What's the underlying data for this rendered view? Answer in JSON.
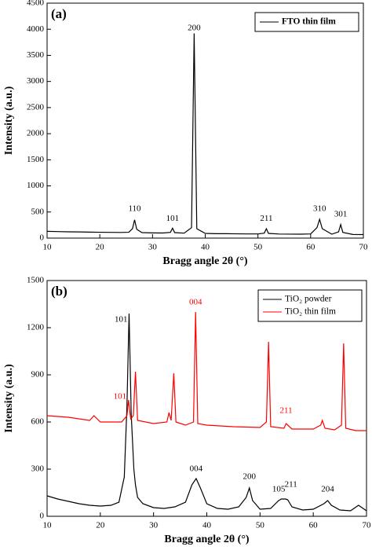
{
  "chart_data": [
    {
      "type": "line",
      "panel_label": "(a)",
      "xlabel": "Bragg angle 2θ (°)",
      "ylabel": "Intensity (a.u.)",
      "xlim": [
        10,
        70
      ],
      "xticks": [
        10,
        20,
        30,
        40,
        50,
        60,
        70
      ],
      "ylim": [
        0,
        4500
      ],
      "yticks": [
        0,
        500,
        1000,
        1500,
        2000,
        2500,
        3000,
        3500,
        4000,
        4500
      ],
      "grid": false,
      "legend": "upper right",
      "series": [
        {
          "name": "FTO thin film",
          "color": "#000000",
          "x": [
            10,
            12,
            14,
            16,
            18,
            20,
            22,
            24,
            25.5,
            26.2,
            26.6,
            27.0,
            28,
            30,
            32,
            33.4,
            33.8,
            34.2,
            36,
            37.4,
            37.9,
            38.4,
            40,
            42,
            44,
            46,
            48,
            50,
            51.2,
            51.6,
            52.0,
            54,
            56,
            58,
            60,
            61.2,
            61.7,
            62.2,
            64,
            65.3,
            65.7,
            66.1,
            68,
            70
          ],
          "values": [
            130,
            125,
            120,
            118,
            115,
            112,
            110,
            108,
            112,
            180,
            350,
            170,
            105,
            100,
            98,
            110,
            190,
            105,
            95,
            200,
            3920,
            180,
            90,
            85,
            85,
            82,
            80,
            80,
            95,
            180,
            90,
            78,
            76,
            75,
            80,
            200,
            360,
            180,
            75,
            120,
            260,
            110,
            70,
            68
          ]
        }
      ],
      "annotations": [
        {
          "text": "200",
          "x": 37.9,
          "y": 4020,
          "color": "#000000"
        },
        {
          "text": "110",
          "x": 26.6,
          "y": 560,
          "color": "#000000"
        },
        {
          "text": "101",
          "x": 33.8,
          "y": 370,
          "color": "#000000"
        },
        {
          "text": "211",
          "x": 51.6,
          "y": 370,
          "color": "#000000"
        },
        {
          "text": "310",
          "x": 61.7,
          "y": 560,
          "color": "#000000"
        },
        {
          "text": "301",
          "x": 65.7,
          "y": 450,
          "color": "#000000"
        }
      ]
    },
    {
      "type": "line",
      "panel_label": "(b)",
      "xlabel": "Bragg angle 2θ (°)",
      "ylabel": "Intensity (a.u.)",
      "xlim": [
        10,
        70
      ],
      "xticks": [
        10,
        20,
        30,
        40,
        50,
        60,
        70
      ],
      "ylim": [
        0,
        1500
      ],
      "yticks": [
        0,
        300,
        600,
        900,
        1200,
        1500
      ],
      "grid": false,
      "legend": "upper right",
      "series": [
        {
          "name": "TiO₂ powder",
          "color": "#000000",
          "x": [
            10,
            12,
            14,
            16,
            18,
            20,
            22,
            23.5,
            24.5,
            25.0,
            25.4,
            25.8,
            26.3,
            26.6,
            27,
            28,
            30,
            32,
            34,
            36,
            37.2,
            38,
            38.8,
            40,
            42,
            44,
            46,
            47.4,
            48,
            48.6,
            50,
            52,
            53.5,
            54,
            54.8,
            55.2,
            56,
            58,
            60,
            62,
            62.7,
            63.4,
            65,
            67,
            68.5,
            70
          ],
          "values": [
            130,
            110,
            95,
            80,
            70,
            65,
            70,
            90,
            250,
            700,
            1290,
            650,
            300,
            200,
            120,
            80,
            55,
            50,
            60,
            90,
            200,
            240,
            180,
            80,
            50,
            45,
            60,
            120,
            180,
            100,
            45,
            50,
            100,
            110,
            110,
            105,
            60,
            40,
            45,
            80,
            100,
            70,
            40,
            35,
            70,
            35
          ]
        },
        {
          "name": "TiO₂ thin film",
          "color": "#ff0000",
          "x": [
            10,
            14,
            18,
            18.8,
            20,
            24,
            25.0,
            25.3,
            25.7,
            26.2,
            26.6,
            27,
            30,
            32.5,
            32.9,
            33.3,
            33.8,
            34.2,
            36,
            37.5,
            37.9,
            38.3,
            40,
            45,
            50,
            51.2,
            51.6,
            52,
            54.5,
            54.9,
            56,
            60,
            61.4,
            61.7,
            62.2,
            64,
            65.3,
            65.7,
            66.1,
            68,
            70
          ],
          "values": [
            640,
            630,
            610,
            640,
            600,
            600,
            640,
            740,
            620,
            640,
            920,
            610,
            590,
            600,
            660,
            610,
            910,
            600,
            580,
            600,
            1300,
            590,
            580,
            570,
            565,
            600,
            1110,
            570,
            560,
            590,
            555,
            555,
            580,
            610,
            560,
            550,
            580,
            1100,
            560,
            545,
            545
          ]
        }
      ],
      "annotations": [
        {
          "text": "101",
          "x": 23.9,
          "y": 1250,
          "color": "#000000"
        },
        {
          "text": "004",
          "x": 38,
          "y": 300,
          "color": "#000000"
        },
        {
          "text": "200",
          "x": 48,
          "y": 250,
          "color": "#000000"
        },
        {
          "text": "105",
          "x": 53.5,
          "y": 170,
          "color": "#000000"
        },
        {
          "text": "211",
          "x": 55.8,
          "y": 200,
          "color": "#000000"
        },
        {
          "text": "204",
          "x": 62.7,
          "y": 170,
          "color": "#000000"
        },
        {
          "text": "101",
          "x": 23.7,
          "y": 760,
          "color": "#ff0000"
        },
        {
          "text": "004",
          "x": 37.9,
          "y": 1360,
          "color": "#ff0000"
        },
        {
          "text": "211",
          "x": 54.9,
          "y": 670,
          "color": "#ff0000"
        }
      ]
    }
  ]
}
